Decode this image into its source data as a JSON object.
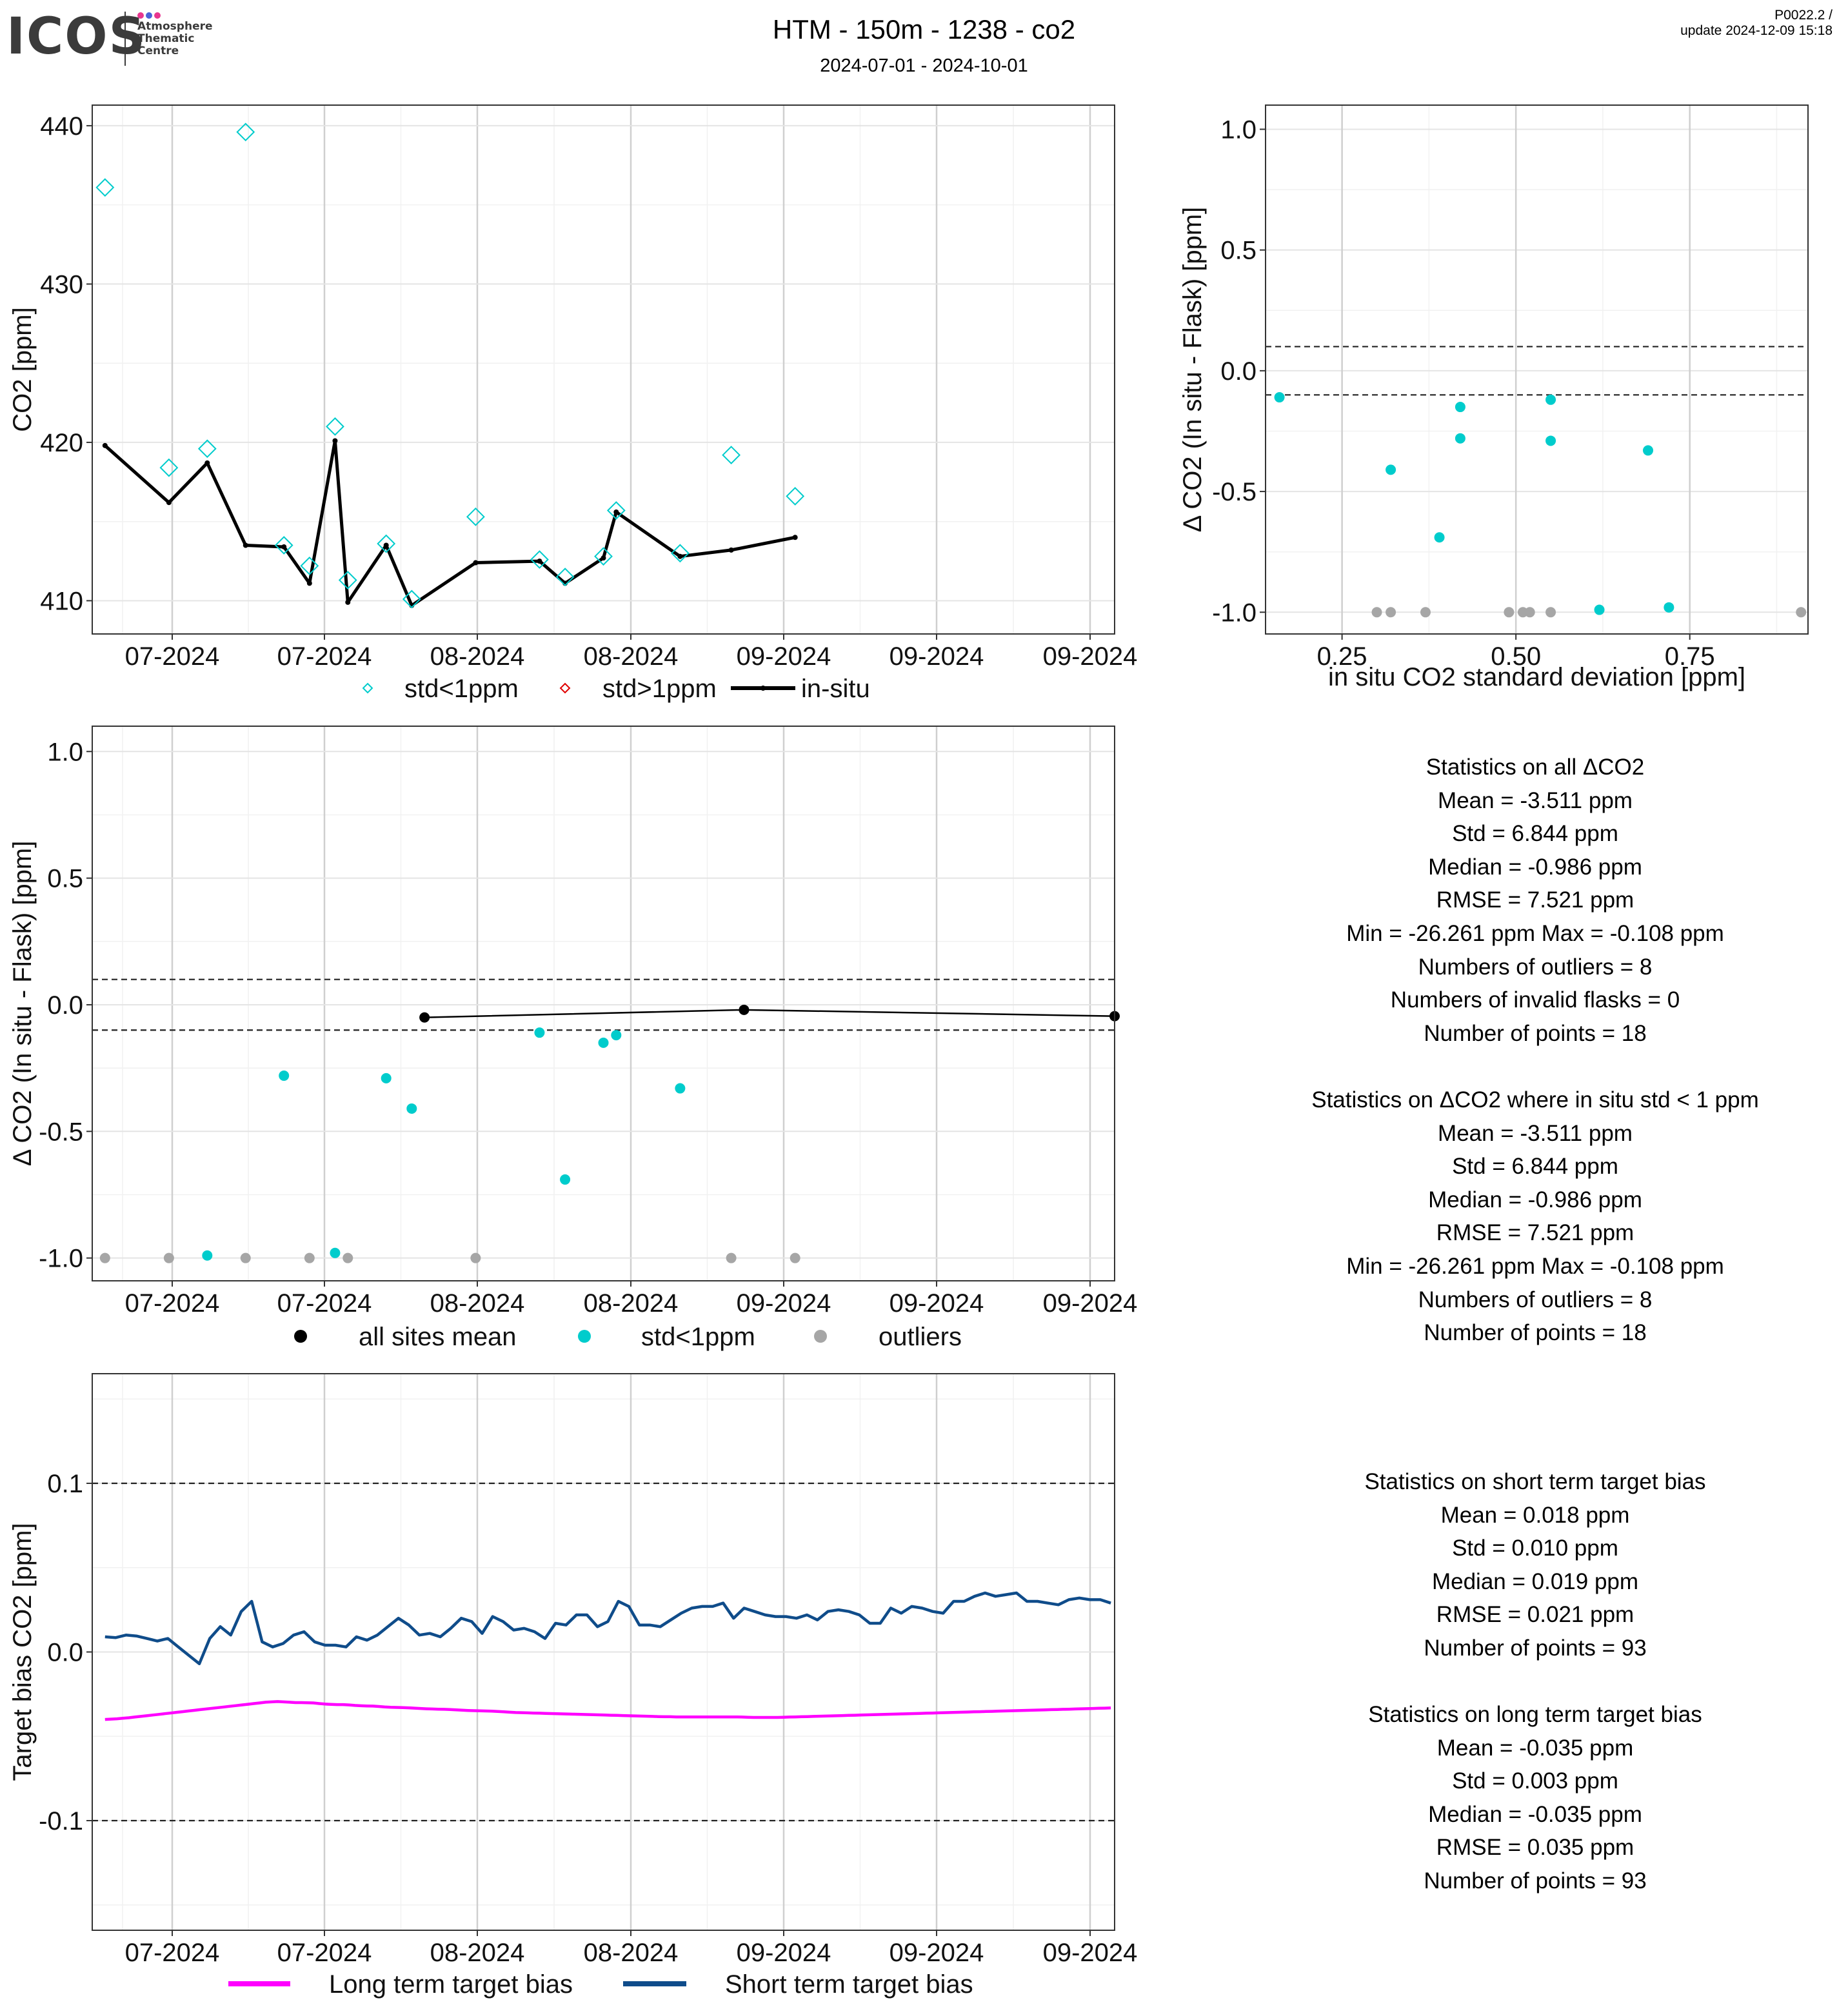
{
  "header": {
    "logo_text": "ICOS",
    "logo_subtitle": [
      "Atmosphere",
      "Thematic",
      "Centre"
    ],
    "title": "HTM - 150m - 1238 - co2",
    "subtitle": "2024-07-01 - 2024-10-01",
    "meta_line1": "P0022.2 /",
    "meta_line2": "update  2024-12-09 15:18"
  },
  "colors": {
    "flask": "#00cccc",
    "outlier": "#a6a6a6",
    "invalid": "#e00000",
    "insitu": "#000000",
    "long_bias": "#ff00ff",
    "short_bias": "#0f4c8a",
    "logo_dot1": "#e8368f",
    "logo_dot2": "#4a63d8",
    "logo_dot3": "#e8368f"
  },
  "chart_data": [
    {
      "id": "timeseries",
      "type": "scatter",
      "ylabel": "CO2 [ppm]",
      "xticks": [
        "07-2024",
        "07-2024",
        "08-2024",
        "08-2024",
        "09-2024",
        "09-2024",
        "09-2024"
      ],
      "yticks": [
        "410",
        "420",
        "430",
        "440"
      ],
      "xlim": [
        "2024-07-02",
        "2024-09-20"
      ],
      "ylim": [
        407.9,
        441.3
      ],
      "legend_position": "bottom",
      "legend": [
        "std<1ppm",
        "std>1ppm",
        "in-situ"
      ],
      "series": [
        {
          "name": "std<1ppm",
          "x": [
            "2024-07-03",
            "2024-07-08",
            "2024-07-11",
            "2024-07-14",
            "2024-07-17",
            "2024-07-19",
            "2024-07-21",
            "2024-07-22",
            "2024-07-25",
            "2024-07-27",
            "2024-08-01",
            "2024-08-06",
            "2024-08-08",
            "2024-08-11",
            "2024-08-12",
            "2024-08-17",
            "2024-08-21",
            "2024-08-26"
          ],
          "values": [
            436.1,
            418.4,
            419.6,
            439.6,
            413.5,
            412.2,
            421.0,
            411.3,
            413.6,
            410.1,
            415.3,
            412.6,
            411.5,
            412.8,
            415.7,
            413.0,
            419.2,
            416.6
          ]
        },
        {
          "name": "in-situ",
          "x": [
            "2024-07-03",
            "2024-07-08",
            "2024-07-11",
            "2024-07-14",
            "2024-07-17",
            "2024-07-19",
            "2024-07-21",
            "2024-07-22",
            "2024-07-25",
            "2024-07-27",
            "2024-08-01",
            "2024-08-06",
            "2024-08-08",
            "2024-08-11",
            "2024-08-12",
            "2024-08-17",
            "2024-08-21",
            "2024-08-26"
          ],
          "values": [
            419.8,
            416.2,
            418.7,
            413.5,
            413.4,
            411.1,
            420.1,
            409.9,
            413.5,
            409.7,
            412.4,
            412.5,
            411.1,
            412.7,
            415.6,
            412.8,
            413.2,
            414.0
          ]
        }
      ]
    },
    {
      "id": "scatter_std",
      "type": "scatter",
      "xlabel": "in situ CO2 standard deviation [ppm]",
      "ylabel": "Δ CO2 (In situ - Flask) [ppm]",
      "xticks": [
        "0.25",
        "0.50",
        "0.75"
      ],
      "yticks": [
        "-1.0",
        "-0.5",
        "0.0",
        "0.5",
        "1.0"
      ],
      "xlim": [
        0.14,
        0.92
      ],
      "ylim": [
        -1.09,
        1.1
      ],
      "hlines": [
        0.1,
        -0.1
      ],
      "series": [
        {
          "name": "std<1ppm",
          "x": [
            0.16,
            0.32,
            0.39,
            0.42,
            0.42,
            0.55,
            0.55,
            0.62,
            0.69,
            0.72
          ],
          "values": [
            -0.11,
            -0.41,
            -0.69,
            -0.15,
            -0.28,
            -0.12,
            -0.29,
            -0.99,
            -0.33,
            -0.98
          ]
        },
        {
          "name": "outliers",
          "x": [
            0.3,
            0.32,
            0.37,
            0.49,
            0.51,
            0.52,
            0.55,
            0.91
          ],
          "values": [
            -1.0,
            -1.0,
            -1.0,
            -1.0,
            -1.0,
            -1.0,
            -1.0,
            -1.0
          ]
        }
      ]
    },
    {
      "id": "delta_time",
      "type": "scatter",
      "ylabel": "Δ CO2 (In situ - Flask) [ppm]",
      "xticks": [
        "07-2024",
        "07-2024",
        "08-2024",
        "08-2024",
        "09-2024",
        "09-2024",
        "09-2024"
      ],
      "yticks": [
        "-1.0",
        "-0.5",
        "0.0",
        "0.5",
        "1.0"
      ],
      "xlim": [
        "2024-07-02",
        "2024-09-20"
      ],
      "ylim": [
        -1.09,
        1.1
      ],
      "hlines": [
        0.1,
        -0.1
      ],
      "legend_position": "bottom",
      "legend": [
        "all sites mean",
        "std<1ppm",
        "outliers"
      ],
      "series": [
        {
          "name": "all sites mean",
          "x": [
            "2024-07-28",
            "2024-08-22",
            "2024-09-20"
          ],
          "values": [
            -0.05,
            -0.02,
            -0.045
          ]
        },
        {
          "name": "std<1ppm",
          "x": [
            "2024-07-11",
            "2024-07-17",
            "2024-07-21",
            "2024-07-25",
            "2024-07-27",
            "2024-08-06",
            "2024-08-08",
            "2024-08-11",
            "2024-08-12",
            "2024-08-17"
          ],
          "values": [
            -0.99,
            -0.28,
            -0.98,
            -0.29,
            -0.41,
            -0.11,
            -0.69,
            -0.15,
            -0.12,
            -0.33
          ]
        },
        {
          "name": "outliers",
          "x": [
            "2024-07-03",
            "2024-07-08",
            "2024-07-14",
            "2024-07-19",
            "2024-07-22",
            "2024-08-01",
            "2024-08-21",
            "2024-08-26"
          ],
          "values": [
            -1.0,
            -1.0,
            -1.0,
            -1.0,
            -1.0,
            -1.0,
            -1.0,
            -1.0
          ]
        }
      ]
    },
    {
      "id": "target_bias",
      "type": "line",
      "ylabel": "Target bias CO2 [ppm]",
      "xticks": [
        "07-2024",
        "07-2024",
        "08-2024",
        "08-2024",
        "09-2024",
        "09-2024",
        "09-2024"
      ],
      "yticks": [
        "-0.1",
        "0.0",
        "0.1"
      ],
      "xlim": [
        "2024-07-02",
        "2024-09-20"
      ],
      "ylim": [
        -0.165,
        0.165
      ],
      "hlines": [
        0.1,
        -0.1
      ],
      "legend_position": "bottom",
      "legend": [
        "Long term target bias",
        "Short term target bias"
      ],
      "x_start": "2024-07-03",
      "series": [
        {
          "name": "Long term target bias",
          "values": [
            -0.04,
            -0.0398,
            -0.0396,
            -0.0393,
            -0.039,
            -0.0386,
            -0.0382,
            -0.0378,
            -0.0374,
            -0.037,
            -0.0366,
            -0.0362,
            -0.0358,
            -0.0354,
            -0.035,
            -0.0346,
            -0.0342,
            -0.0338,
            -0.0334,
            -0.033,
            -0.0326,
            -0.0322,
            -0.0318,
            -0.0314,
            -0.031,
            -0.0306,
            -0.0302,
            -0.0298,
            -0.0296,
            -0.0294,
            -0.0296,
            -0.0298,
            -0.03,
            -0.03,
            -0.0301,
            -0.0302,
            -0.0306,
            -0.0309,
            -0.0311,
            -0.0312,
            -0.0312,
            -0.0314,
            -0.0317,
            -0.0319,
            -0.032,
            -0.0321,
            -0.0323,
            -0.0326,
            -0.0328,
            -0.0329,
            -0.033,
            -0.0331,
            -0.0333,
            -0.0335,
            -0.0337,
            -0.0338,
            -0.0339,
            -0.034,
            -0.0341,
            -0.0343,
            -0.0345,
            -0.0347,
            -0.0348,
            -0.0349,
            -0.035,
            -0.0351,
            -0.0353,
            -0.0355,
            -0.0357,
            -0.0359,
            -0.036,
            -0.0361,
            -0.0362,
            -0.0363,
            -0.0364,
            -0.0365,
            -0.0366,
            -0.0367,
            -0.0368,
            -0.0369,
            -0.037,
            -0.0371,
            -0.0372,
            -0.0373,
            -0.0374,
            -0.0375,
            -0.0376,
            -0.0377,
            -0.0378,
            -0.0379,
            -0.038,
            -0.0381,
            -0.0382,
            -0.0383,
            -0.0384,
            -0.0384,
            -0.0385,
            -0.0385,
            -0.0385,
            -0.0385,
            -0.0385,
            -0.0385,
            -0.0385,
            -0.0385,
            -0.0385,
            -0.0385,
            -0.0385,
            -0.0386,
            -0.0387,
            -0.0388,
            -0.0388,
            -0.0388,
            -0.0388,
            -0.0388,
            -0.0387,
            -0.0386,
            -0.0385,
            -0.0384,
            -0.0383,
            -0.0382,
            -0.0381,
            -0.038,
            -0.0379,
            -0.0378,
            -0.0377,
            -0.0376,
            -0.0375,
            -0.0374,
            -0.0373,
            -0.0372,
            -0.0371,
            -0.037,
            -0.0369,
            -0.0368,
            -0.0367,
            -0.0366,
            -0.0365,
            -0.0364,
            -0.0363,
            -0.0362,
            -0.0361,
            -0.036,
            -0.0359,
            -0.0358,
            -0.0357,
            -0.0356,
            -0.0355,
            -0.0354,
            -0.0353,
            -0.0352,
            -0.0351,
            -0.035,
            -0.0349,
            -0.0348,
            -0.0347,
            -0.0346,
            -0.0345,
            -0.0344,
            -0.0343,
            -0.0342,
            -0.0341,
            -0.034,
            -0.0339,
            -0.0338,
            -0.0337,
            -0.0336,
            -0.0335,
            -0.0334,
            -0.0333,
            -0.0332
          ]
        },
        {
          "name": "Short term target bias",
          "values": [
            0.009,
            0.0085,
            0.01,
            0.0095,
            0.008,
            0.0065,
            0.008,
            0.003,
            -0.002,
            -0.007,
            0.008,
            0.015,
            0.01,
            0.024,
            0.03,
            0.006,
            0.003,
            0.005,
            0.01,
            0.012,
            0.006,
            0.004,
            0.004,
            0.003,
            0.009,
            0.007,
            0.01,
            0.015,
            0.02,
            0.016,
            0.01,
            0.011,
            0.009,
            0.014,
            0.02,
            0.018,
            0.011,
            0.021,
            0.018,
            0.013,
            0.014,
            0.012,
            0.008,
            0.017,
            0.016,
            0.022,
            0.022,
            0.015,
            0.018,
            0.03,
            0.027,
            0.016,
            0.016,
            0.015,
            0.019,
            0.023,
            0.026,
            0.027,
            0.027,
            0.029,
            0.02,
            0.026,
            0.024,
            0.022,
            0.021,
            0.021,
            0.02,
            0.022,
            0.019,
            0.024,
            0.025,
            0.024,
            0.022,
            0.017,
            0.017,
            0.026,
            0.023,
            0.027,
            0.026,
            0.024,
            0.023,
            0.03,
            0.03,
            0.033,
            0.035,
            0.033,
            0.034,
            0.035,
            0.03,
            0.03,
            0.029,
            0.028,
            0.031,
            0.032,
            0.031,
            0.031,
            0.029
          ]
        }
      ]
    }
  ],
  "stats_all": {
    "title": "Statistics on all ΔCO2",
    "mean": "Mean =  -3.511 ppm",
    "std": "Std =  6.844 ppm",
    "median": "Median =  -0.986 ppm",
    "rmse": "RMSE =  7.521 ppm",
    "minmax": "Min =  -26.261 ppm Max =  -0.108 ppm",
    "outliers": "Numbers of outliers =  8",
    "invalid": "Numbers of invalid flasks =  0",
    "points": "Number of points =  18"
  },
  "stats_std": {
    "title": "Statistics on ΔCO2 where in situ std < 1 ppm",
    "mean": "Mean =  -3.511 ppm",
    "std": "Std =  6.844 ppm",
    "median": "Median =  -0.986 ppm",
    "rmse": "RMSE =  7.521 ppm",
    "minmax": "Min =  -26.261 ppm Max =  -0.108 ppm",
    "outliers": "Numbers of outliers =  8",
    "points": "Number of points =  18"
  },
  "stats_short": {
    "title": "Statistics on short term target bias",
    "mean": "Mean =  0.018 ppm",
    "std": "Std =  0.010 ppm",
    "median": "Median =  0.019 ppm",
    "rmse": "RMSE =  0.021 ppm",
    "points": "Number of points =  93"
  },
  "stats_long": {
    "title": "Statistics on long term target bias",
    "mean": "Mean =  -0.035 ppm",
    "std": "Std =  0.003 ppm",
    "median": "Median =  -0.035 ppm",
    "rmse": "RMSE =  0.035 ppm",
    "points": "Number of points =  93"
  }
}
